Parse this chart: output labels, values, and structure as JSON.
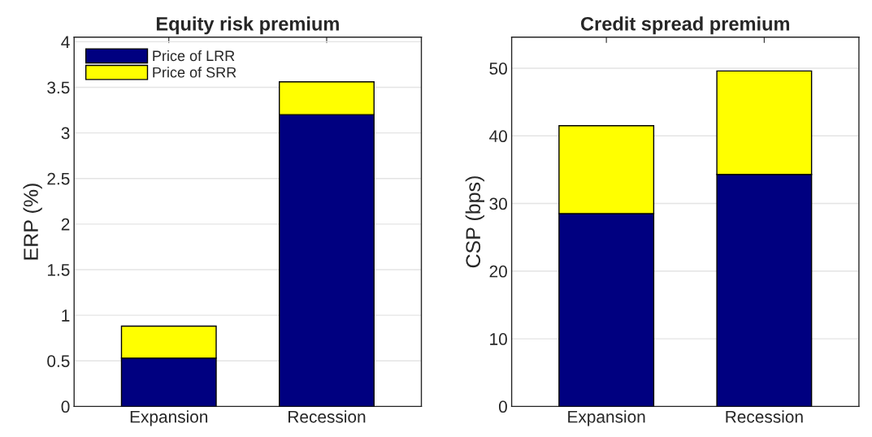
{
  "chart_data": [
    {
      "type": "bar",
      "title": "Equity risk premium",
      "ylabel": "ERP (%)",
      "categories": [
        "Expansion",
        "Recession"
      ],
      "stacked": true,
      "legend": "top left",
      "grid": "y",
      "ylim": [
        0,
        4.05
      ],
      "yticks": [
        0,
        0.5,
        1,
        1.5,
        2,
        2.5,
        3,
        3.5,
        4
      ],
      "series": [
        {
          "name": "Price of LRR",
          "color": "#000080",
          "values": [
            0.53,
            3.2
          ]
        },
        {
          "name": "Price of SRR",
          "color": "#ffff00",
          "values": [
            0.35,
            0.36
          ]
        }
      ]
    },
    {
      "type": "bar",
      "title": "Credit spread premium",
      "ylabel": "CSP (bps)",
      "categories": [
        "Expansion",
        "Recession"
      ],
      "stacked": true,
      "grid": "y",
      "ylim": [
        0,
        54.6
      ],
      "yticks": [
        0,
        10,
        20,
        30,
        40,
        50
      ],
      "series": [
        {
          "color": "#000080",
          "values": [
            28.5,
            34.3
          ]
        },
        {
          "color": "#ffff00",
          "values": [
            13.0,
            15.3
          ]
        }
      ]
    }
  ]
}
